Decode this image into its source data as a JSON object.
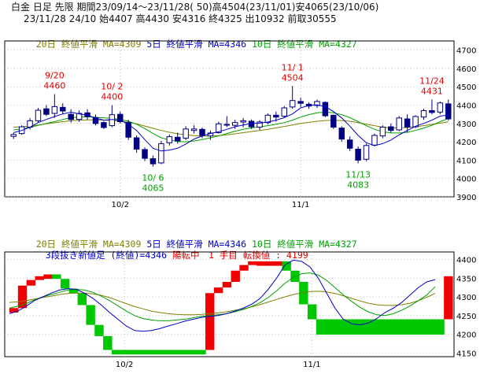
{
  "header": {
    "line1": "白金 日足 先限 期間23/09/14～23/11/28( 50)高4504(23/11/01)安4065(23/10/06)",
    "line2": "23/11/28 24/10 始4407 高4430 安4316 終4325 出10932 前取30555"
  },
  "top_legend": [
    {
      "text": "20日 終値平滑 MA=4309",
      "color": "#808000"
    },
    {
      "text": "5日 終値平滑 MA=4346",
      "color": "#0000c8"
    },
    {
      "text": "10日 終値平滑 MA=4327",
      "color": "#00a000"
    }
  ],
  "bottom_legend": [
    {
      "text": "20日 終値平滑 MA=4309",
      "color": "#808000"
    },
    {
      "text": "5日 終値平滑 MA=4346",
      "color": "#0000c8"
    },
    {
      "text": "10日 終値平滑 MA=4327",
      "color": "#00a000"
    }
  ],
  "kagi_info": {
    "text1": "3段抜き新値足 (終値)=4346",
    "text2": "陽転中　1 手目 転換値 : 4199",
    "color1": "#0000c8",
    "color2": "#e00000"
  },
  "colors": {
    "bull_body": "#ffffff",
    "bear_body": "#000080",
    "candle_edge": "#000080",
    "ma20": "#808000",
    "ma5": "#0000c8",
    "ma10": "#00a000",
    "up_block": "#f00000",
    "down_block": "#00c800",
    "grid": "#b0b0b0",
    "high_label": "#e00000",
    "low_label": "#00a000"
  },
  "chart_data": [
    {
      "type": "candlestick",
      "ylim": [
        3900,
        4750
      ],
      "yticks": [
        3900,
        4000,
        4100,
        4200,
        4300,
        4400,
        4500,
        4600,
        4700
      ],
      "x_tick_labels": [
        {
          "index": 13,
          "label": "10/2"
        },
        {
          "index": 35,
          "label": "11/1"
        }
      ],
      "grid": true,
      "candles": [
        [
          4230,
          4248,
          4215,
          4240
        ],
        [
          4245,
          4290,
          4238,
          4282
        ],
        [
          4280,
          4330,
          4268,
          4315
        ],
        [
          4315,
          4385,
          4305,
          4372
        ],
        [
          4380,
          4400,
          4340,
          4350
        ],
        [
          4355,
          4460,
          4330,
          4392
        ],
        [
          4388,
          4410,
          4350,
          4368
        ],
        [
          4350,
          4378,
          4305,
          4322
        ],
        [
          4322,
          4372,
          4308,
          4355
        ],
        [
          4358,
          4378,
          4320,
          4338
        ],
        [
          4332,
          4348,
          4290,
          4300
        ],
        [
          4305,
          4312,
          4270,
          4278
        ],
        [
          4288,
          4400,
          4280,
          4348
        ],
        [
          4350,
          4365,
          4300,
          4310
        ],
        [
          4305,
          4320,
          4210,
          4225
        ],
        [
          4222,
          4235,
          4140,
          4160
        ],
        [
          4158,
          4170,
          4095,
          4110
        ],
        [
          4108,
          4125,
          4065,
          4080
        ],
        [
          4085,
          4205,
          4078,
          4190
        ],
        [
          4195,
          4240,
          4180,
          4228
        ],
        [
          4225,
          4250,
          4190,
          4205
        ],
        [
          4220,
          4285,
          4210,
          4270
        ],
        [
          4262,
          4290,
          4245,
          4270
        ],
        [
          4268,
          4278,
          4220,
          4235
        ],
        [
          4232,
          4262,
          4210,
          4248
        ],
        [
          4250,
          4310,
          4245,
          4298
        ],
        [
          4295,
          4340,
          4280,
          4292
        ],
        [
          4290,
          4320,
          4270,
          4305
        ],
        [
          4308,
          4330,
          4280,
          4315
        ],
        [
          4312,
          4322,
          4270,
          4282
        ],
        [
          4280,
          4318,
          4265,
          4308
        ],
        [
          4305,
          4355,
          4295,
          4345
        ],
        [
          4345,
          4365,
          4310,
          4335
        ],
        [
          4340,
          4395,
          4330,
          4385
        ],
        [
          4390,
          4504,
          4380,
          4425
        ],
        [
          4420,
          4440,
          4390,
          4410
        ],
        [
          4405,
          4415,
          4380,
          4395
        ],
        [
          4398,
          4430,
          4385,
          4420
        ],
        [
          4415,
          4420,
          4335,
          4342
        ],
        [
          4345,
          4348,
          4270,
          4280
        ],
        [
          4275,
          4285,
          4200,
          4215
        ],
        [
          4210,
          4230,
          4150,
          4165
        ],
        [
          4160,
          4175,
          4083,
          4100
        ],
        [
          4105,
          4190,
          4095,
          4180
        ],
        [
          4182,
          4245,
          4175,
          4235
        ],
        [
          4232,
          4290,
          4220,
          4280
        ],
        [
          4282,
          4300,
          4250,
          4262
        ],
        [
          4265,
          4340,
          4258,
          4330
        ],
        [
          4325,
          4350,
          4250,
          4280
        ],
        [
          4282,
          4345,
          4275,
          4338
        ],
        [
          4335,
          4380,
          4320,
          4370
        ],
        [
          4370,
          4431,
          4350,
          4360
        ],
        [
          4362,
          4420,
          4350,
          4412
        ],
        [
          4407,
          4430,
          4316,
          4325
        ]
      ],
      "ma5": [
        4250,
        4262,
        4280,
        4305,
        4322,
        4338,
        4352,
        4362,
        4352,
        4345,
        4330,
        4318,
        4322,
        4318,
        4295,
        4262,
        4212,
        4165,
        4150,
        4155,
        4165,
        4188,
        4215,
        4232,
        4245,
        4255,
        4268,
        4282,
        4292,
        4300,
        4302,
        4308,
        4318,
        4332,
        4352,
        4385,
        4398,
        4402,
        4392,
        4365,
        4330,
        4285,
        4235,
        4195,
        4180,
        4190,
        4210,
        4238,
        4262,
        4285,
        4300,
        4318,
        4340,
        4346
      ],
      "ma10": [
        4265,
        4270,
        4278,
        4290,
        4300,
        4310,
        4322,
        4332,
        4334,
        4336,
        4334,
        4330,
        4328,
        4322,
        4312,
        4296,
        4272,
        4245,
        4222,
        4210,
        4202,
        4200,
        4205,
        4212,
        4222,
        4232,
        4245,
        4258,
        4268,
        4276,
        4282,
        4288,
        4296,
        4305,
        4318,
        4335,
        4348,
        4358,
        4362,
        4358,
        4348,
        4332,
        4310,
        4288,
        4268,
        4255,
        4248,
        4248,
        4252,
        4262,
        4275,
        4290,
        4310,
        4327
      ],
      "ma20": [
        4280,
        4282,
        4286,
        4292,
        4298,
        4304,
        4310,
        4315,
        4318,
        4320,
        4320,
        4318,
        4316,
        4312,
        4306,
        4298,
        4286,
        4274,
        4262,
        4252,
        4244,
        4238,
        4234,
        4232,
        4232,
        4234,
        4238,
        4244,
        4250,
        4256,
        4262,
        4268,
        4276,
        4284,
        4292,
        4300,
        4306,
        4312,
        4316,
        4318,
        4316,
        4312,
        4305,
        4296,
        4288,
        4280,
        4276,
        4275,
        4278,
        4282,
        4288,
        4295,
        4302,
        4309
      ],
      "annotations": [
        {
          "index": 5,
          "date": "9/20",
          "value": "4460",
          "kind": "high"
        },
        {
          "index": 12,
          "date": "10/ 2",
          "value": "4400",
          "kind": "high"
        },
        {
          "index": 34,
          "date": "11/ 1",
          "value": "4504",
          "kind": "high"
        },
        {
          "index": 51,
          "date": "11/24",
          "value": "4431",
          "kind": "high"
        },
        {
          "index": 17,
          "date": "10/ 6",
          "value": "4065",
          "kind": "low"
        },
        {
          "index": 42,
          "date": "11/13",
          "value": "4083",
          "kind": "low"
        }
      ]
    },
    {
      "type": "three-line-break",
      "ylim": [
        4140,
        4420
      ],
      "yticks": [
        4150,
        4200,
        4250,
        4300,
        4350,
        4400
      ],
      "x_tick_labels": [
        {
          "index": 13,
          "label": "10/2"
        },
        {
          "index": 35,
          "label": "11/1"
        }
      ],
      "grid": true,
      "blocks": [
        {
          "dir": "up",
          "low": 4258,
          "high": 4270
        },
        {
          "dir": "up",
          "low": 4270,
          "high": 4330
        },
        {
          "dir": "up",
          "low": 4330,
          "high": 4345
        },
        {
          "dir": "up",
          "low": 4345,
          "high": 4355
        },
        {
          "dir": "up",
          "low": 4355,
          "high": 4360
        },
        {
          "dir": "down",
          "low": 4348,
          "high": 4360
        },
        {
          "dir": "down",
          "low": 4322,
          "high": 4348
        },
        {
          "dir": "down",
          "low": 4310,
          "high": 4322
        },
        {
          "dir": "down",
          "low": 4278,
          "high": 4310
        },
        {
          "dir": "down",
          "low": 4225,
          "high": 4278
        },
        {
          "dir": "down",
          "low": 4195,
          "high": 4225
        },
        {
          "dir": "down",
          "low": 4158,
          "high": 4195
        },
        {
          "dir": "down",
          "low": 4158,
          "high": 4158
        },
        {
          "dir": "down",
          "low": 4158,
          "high": 4158
        },
        {
          "dir": "down",
          "low": 4158,
          "high": 4158
        },
        {
          "dir": "down",
          "low": 4158,
          "high": 4158
        },
        {
          "dir": "down",
          "low": 4158,
          "high": 4158
        },
        {
          "dir": "down",
          "low": 4158,
          "high": 4158
        },
        {
          "dir": "down",
          "low": 4158,
          "high": 4158
        },
        {
          "dir": "down",
          "low": 4158,
          "high": 4158
        },
        {
          "dir": "down",
          "low": 4158,
          "high": 4158
        },
        {
          "dir": "down",
          "low": 4158,
          "high": 4158
        },
        {
          "dir": "down",
          "low": 4158,
          "high": 4158
        },
        {
          "dir": "up",
          "low": 4158,
          "high": 4310
        },
        {
          "dir": "up",
          "low": 4310,
          "high": 4325
        },
        {
          "dir": "up",
          "low": 4325,
          "high": 4340
        },
        {
          "dir": "up",
          "low": 4340,
          "high": 4370
        },
        {
          "dir": "up",
          "low": 4370,
          "high": 4385
        },
        {
          "dir": "up",
          "low": 4385,
          "high": 4395
        },
        {
          "dir": "up",
          "low": 4395,
          "high": 4395
        },
        {
          "dir": "up",
          "low": 4395,
          "high": 4395
        },
        {
          "dir": "up",
          "low": 4395,
          "high": 4395
        },
        {
          "dir": "down",
          "low": 4370,
          "high": 4395
        },
        {
          "dir": "down",
          "low": 4340,
          "high": 4370
        },
        {
          "dir": "down",
          "low": 4280,
          "high": 4340
        },
        {
          "dir": "down",
          "low": 4240,
          "high": 4280
        },
        {
          "dir": "down",
          "low": 4199,
          "high": 4240
        },
        {
          "dir": "down",
          "low": 4199,
          "high": 4240
        },
        {
          "dir": "down",
          "low": 4199,
          "high": 4240
        },
        {
          "dir": "down",
          "low": 4199,
          "high": 4240
        },
        {
          "dir": "down",
          "low": 4199,
          "high": 4240
        },
        {
          "dir": "down",
          "low": 4199,
          "high": 4240
        },
        {
          "dir": "down",
          "low": 4199,
          "high": 4240
        },
        {
          "dir": "down",
          "low": 4199,
          "high": 4240
        },
        {
          "dir": "down",
          "low": 4199,
          "high": 4240
        },
        {
          "dir": "down",
          "low": 4199,
          "high": 4240
        },
        {
          "dir": "down",
          "low": 4199,
          "high": 4240
        },
        {
          "dir": "down",
          "low": 4199,
          "high": 4240
        },
        {
          "dir": "down",
          "low": 4199,
          "high": 4240
        },
        {
          "dir": "down",
          "low": 4199,
          "high": 4240
        },
        {
          "dir": "down",
          "low": 4199,
          "high": 4240
        },
        {
          "dir": "up",
          "low": 4240,
          "high": 4355
        }
      ],
      "ma5": [
        4255,
        4262,
        4275,
        4290,
        4300,
        4310,
        4318,
        4322,
        4320,
        4310,
        4296,
        4278,
        4258,
        4240,
        4222,
        4210,
        4208,
        4210,
        4215,
        4222,
        4228,
        4235,
        4240,
        4245,
        4248,
        4250,
        4255,
        4262,
        4270,
        4280,
        4295,
        4320,
        4350,
        4385,
        4398,
        4395,
        4380,
        4350,
        4310,
        4270,
        4240,
        4228,
        4225,
        4230,
        4242,
        4258,
        4270,
        4285,
        4305,
        4325,
        4340,
        4346
      ],
      "ma10": [
        4270,
        4275,
        4282,
        4292,
        4300,
        4306,
        4312,
        4318,
        4320,
        4318,
        4312,
        4302,
        4290,
        4276,
        4262,
        4250,
        4242,
        4238,
        4236,
        4236,
        4238,
        4240,
        4244,
        4248,
        4250,
        4252,
        4255,
        4260,
        4266,
        4274,
        4284,
        4298,
        4316,
        4336,
        4352,
        4362,
        4364,
        4358,
        4344,
        4325,
        4305,
        4288,
        4272,
        4260,
        4252,
        4250,
        4255,
        4264,
        4276,
        4290,
        4305,
        4327
      ],
      "ma20": [
        4285,
        4287,
        4290,
        4294,
        4298,
        4302,
        4306,
        4309,
        4310,
        4310,
        4308,
        4304,
        4298,
        4290,
        4282,
        4274,
        4268,
        4262,
        4258,
        4255,
        4253,
        4252,
        4252,
        4253,
        4255,
        4257,
        4260,
        4264,
        4268,
        4273,
        4279,
        4286,
        4293,
        4300,
        4306,
        4311,
        4314,
        4315,
        4313,
        4309,
        4303,
        4296,
        4289,
        4283,
        4279,
        4277,
        4277,
        4279,
        4283,
        4290,
        4299,
        4309
      ]
    }
  ]
}
